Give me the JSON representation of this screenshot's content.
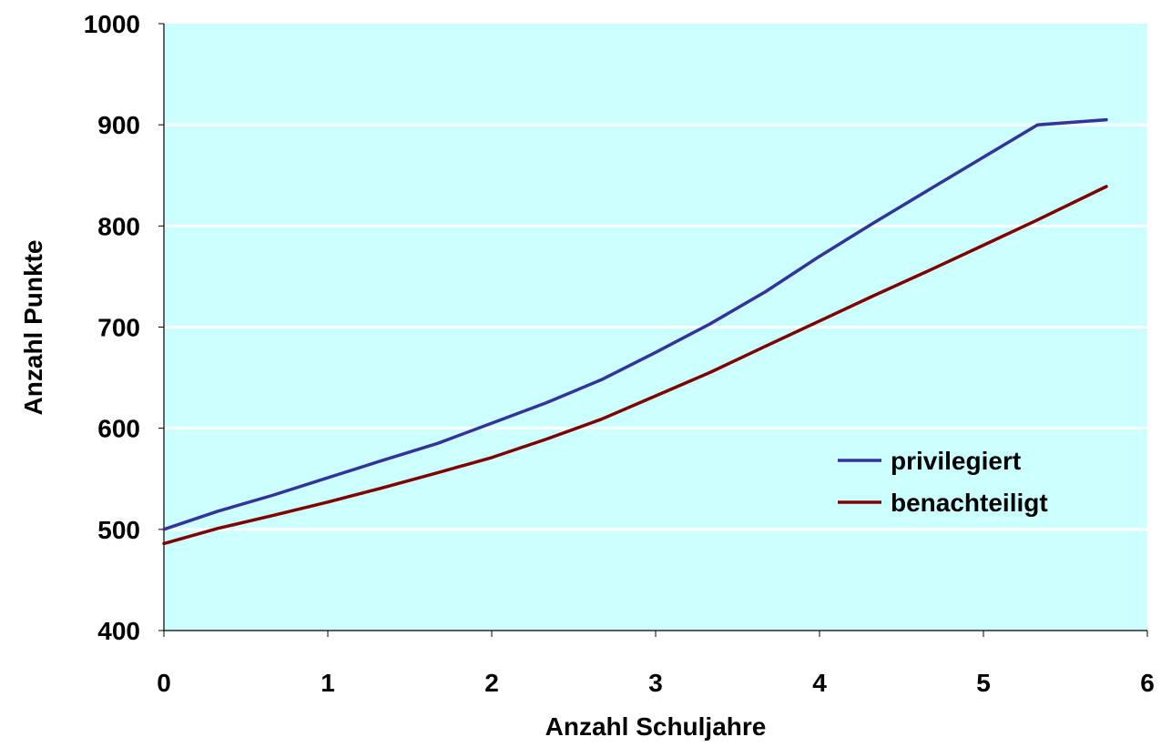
{
  "chart_data": {
    "type": "line",
    "title": "",
    "xlabel": "Anzahl Schuljahre",
    "ylabel": "Anzahl Punkte",
    "xlim": [
      0,
      6
    ],
    "ylim": [
      400,
      1000
    ],
    "xticks": [
      "0",
      "1",
      "2",
      "3",
      "4",
      "5",
      "6"
    ],
    "yticks": [
      "400",
      "500",
      "600",
      "700",
      "800",
      "900",
      "1000"
    ],
    "grid": "horizontal",
    "legend_position": "right",
    "plot_background": "#ccffff",
    "series": [
      {
        "name": "privilegiert",
        "color": "#333399",
        "x": [
          0,
          0.33,
          0.67,
          1.0,
          1.33,
          1.67,
          2.0,
          2.33,
          2.67,
          3.0,
          3.33,
          3.67,
          4.0,
          4.33,
          4.67,
          5.0,
          5.33,
          5.75
        ],
        "y": [
          500,
          518,
          534,
          551,
          568,
          585,
          605,
          625,
          648,
          675,
          703,
          735,
          770,
          803,
          836,
          868,
          900,
          905
        ]
      },
      {
        "name": "benachteiligt",
        "color": "#800000",
        "x": [
          0,
          0.33,
          0.67,
          1.0,
          1.33,
          1.67,
          2.0,
          2.33,
          2.67,
          3.0,
          3.33,
          3.67,
          4.0,
          4.33,
          4.67,
          5.0,
          5.33,
          5.75
        ],
        "y": [
          486,
          501,
          514,
          527,
          541,
          556,
          571,
          589,
          609,
          632,
          655,
          681,
          706,
          731,
          756,
          781,
          806,
          839
        ]
      }
    ]
  }
}
